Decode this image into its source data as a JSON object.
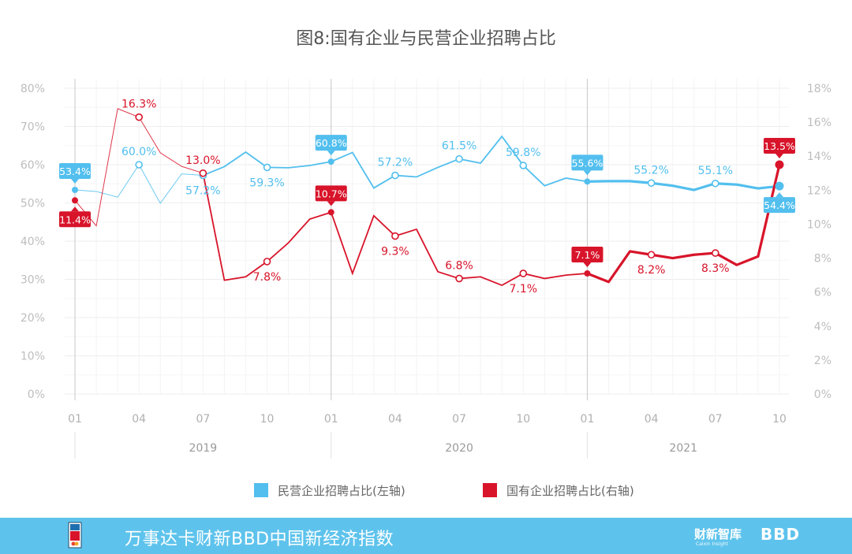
{
  "chart_data": {
    "type": "line",
    "title": "图8:国有企业与民营企业招聘占比",
    "x_ticks": [
      "01",
      "04",
      "07",
      "10",
      "01",
      "04",
      "07",
      "10",
      "01",
      "04",
      "07",
      "10"
    ],
    "years": [
      "2019",
      "2020",
      "2021"
    ],
    "left_axis": {
      "ticks": [
        "0%",
        "10%",
        "20%",
        "30%",
        "40%",
        "50%",
        "60%",
        "70%",
        "80%"
      ],
      "ylim": [
        0,
        80
      ]
    },
    "right_axis": {
      "ticks": [
        "0%",
        "2%",
        "4%",
        "6%",
        "8%",
        "10%",
        "12%",
        "14%",
        "16%",
        "18%"
      ],
      "ylim": [
        0,
        18
      ]
    },
    "grid": true,
    "legend_position": "bottom",
    "series": [
      {
        "name": "民营企业招聘占比(左轴)",
        "axis": "left",
        "color": "#52bfee",
        "x": [
          "2019-01",
          "2019-02",
          "2019-03",
          "2019-04",
          "2019-05",
          "2019-06",
          "2019-07",
          "2019-08",
          "2019-09",
          "2019-10",
          "2019-11",
          "2019-12",
          "2020-01",
          "2020-02",
          "2020-03",
          "2020-04",
          "2020-05",
          "2020-06",
          "2020-07",
          "2020-08",
          "2020-09",
          "2020-10",
          "2020-11",
          "2020-12",
          "2021-01",
          "2021-02",
          "2021-03",
          "2021-04",
          "2021-05",
          "2021-06",
          "2021-07",
          "2021-08",
          "2021-09",
          "2021-10"
        ],
        "values": [
          53.4,
          53.0,
          51.5,
          60.0,
          49.9,
          57.6,
          57.2,
          59.5,
          63.3,
          59.3,
          59.2,
          59.8,
          60.8,
          63.2,
          53.9,
          57.2,
          56.8,
          59.3,
          61.5,
          60.4,
          67.4,
          59.8,
          54.5,
          56.5,
          55.6,
          55.7,
          55.7,
          55.2,
          54.5,
          53.4,
          55.1,
          54.8,
          53.8,
          54.4
        ]
      },
      {
        "name": "国有企业招聘占比(右轴)",
        "axis": "right",
        "color": "#d8142a",
        "x": [
          "2019-01",
          "2019-02",
          "2019-03",
          "2019-04",
          "2019-05",
          "2019-06",
          "2019-07",
          "2019-08",
          "2019-09",
          "2019-10",
          "2019-11",
          "2019-12",
          "2020-01",
          "2020-02",
          "2020-03",
          "2020-04",
          "2020-05",
          "2020-06",
          "2020-07",
          "2020-08",
          "2020-09",
          "2020-10",
          "2020-11",
          "2020-12",
          "2021-01",
          "2021-02",
          "2021-03",
          "2021-04",
          "2021-05",
          "2021-06",
          "2021-07",
          "2021-08",
          "2021-09",
          "2021-10"
        ],
        "values": [
          11.4,
          9.9,
          16.8,
          16.3,
          14.2,
          13.4,
          13.0,
          6.7,
          6.9,
          7.8,
          8.9,
          10.3,
          10.7,
          7.1,
          10.5,
          9.3,
          9.7,
          7.2,
          6.8,
          6.9,
          6.4,
          7.1,
          6.8,
          7.0,
          7.1,
          6.6,
          8.4,
          8.2,
          8.0,
          8.2,
          8.3,
          7.6,
          8.1,
          13.5
        ]
      }
    ],
    "point_labels": {
      "private": [
        {
          "i": 0,
          "text": "53.4%",
          "highlight": true
        },
        {
          "i": 3,
          "text": "60.0%",
          "highlight": false
        },
        {
          "i": 6,
          "text": "57.2%",
          "highlight": false
        },
        {
          "i": 9,
          "text": "59.3%",
          "highlight": false
        },
        {
          "i": 12,
          "text": "60.8%",
          "highlight": true
        },
        {
          "i": 15,
          "text": "57.2%",
          "highlight": false
        },
        {
          "i": 18,
          "text": "61.5%",
          "highlight": false
        },
        {
          "i": 21,
          "text": "59.8%",
          "highlight": false
        },
        {
          "i": 24,
          "text": "55.6%",
          "highlight": true
        },
        {
          "i": 27,
          "text": "55.2%",
          "highlight": false
        },
        {
          "i": 30,
          "text": "55.1%",
          "highlight": false
        },
        {
          "i": 33,
          "text": "54.4%",
          "highlight": true
        }
      ],
      "state": [
        {
          "i": 0,
          "text": "11.4%",
          "highlight": true
        },
        {
          "i": 3,
          "text": "16.3%",
          "highlight": false
        },
        {
          "i": 6,
          "text": "13.0%",
          "highlight": false
        },
        {
          "i": 9,
          "text": "7.8%",
          "highlight": false
        },
        {
          "i": 12,
          "text": "10.7%",
          "highlight": true
        },
        {
          "i": 15,
          "text": "9.3%",
          "highlight": false
        },
        {
          "i": 18,
          "text": "6.8%",
          "highlight": false
        },
        {
          "i": 21,
          "text": "7.1%",
          "highlight": false
        },
        {
          "i": 24,
          "text": "7.1%",
          "highlight": true
        },
        {
          "i": 27,
          "text": "8.2%",
          "highlight": false
        },
        {
          "i": 30,
          "text": "8.3%",
          "highlight": false
        },
        {
          "i": 33,
          "text": "13.5%",
          "highlight": true
        }
      ]
    }
  },
  "footer": {
    "title": "万事达卡财新BBD中国新经济指数",
    "logo_caixin": "财新智库",
    "logo_caixin_sub": "Caixin Insight",
    "logo_bbd": "BBD"
  },
  "colors": {
    "private": "#52bfee",
    "state": "#d8142a",
    "footer": "#5ec3ec"
  }
}
